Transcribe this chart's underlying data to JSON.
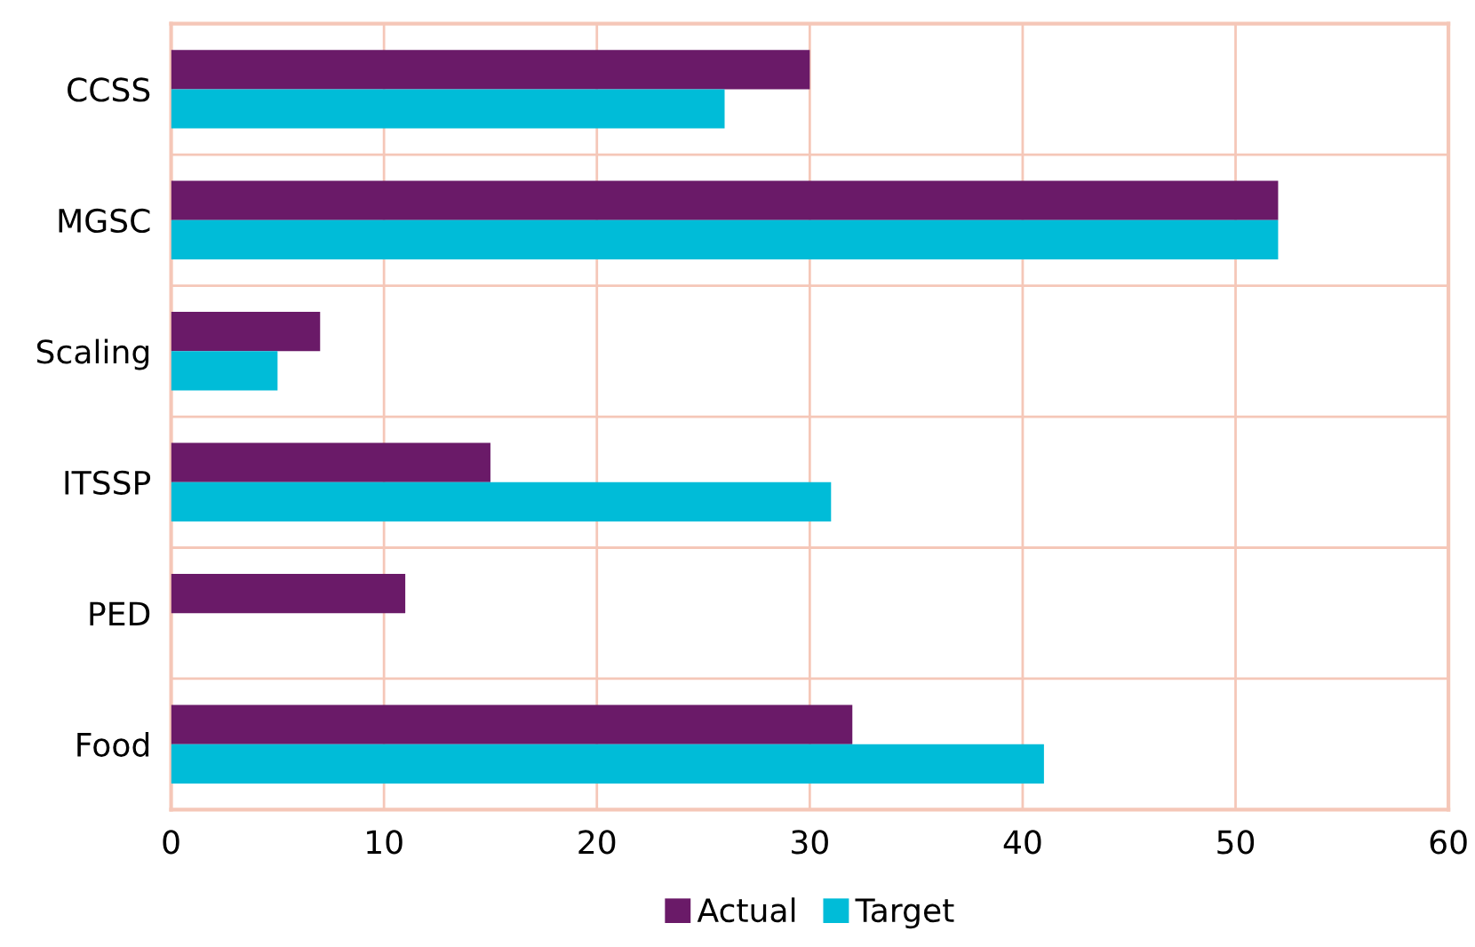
{
  "chart_data": {
    "type": "bar",
    "orientation": "horizontal",
    "categories": [
      "CCSS",
      "MGSC",
      "Scaling",
      "ITSSP",
      "PED",
      "Food"
    ],
    "series": [
      {
        "name": "Actual",
        "color": "#6a1a68",
        "values": [
          30,
          52,
          7,
          15,
          11,
          32
        ]
      },
      {
        "name": "Target",
        "color": "#00bcd8",
        "values": [
          26,
          52,
          5,
          31,
          0,
          41
        ]
      }
    ],
    "xlim": [
      0,
      60
    ],
    "xticks": [
      0,
      10,
      20,
      30,
      40,
      50,
      60
    ],
    "grid": true,
    "legend": "bottom"
  }
}
